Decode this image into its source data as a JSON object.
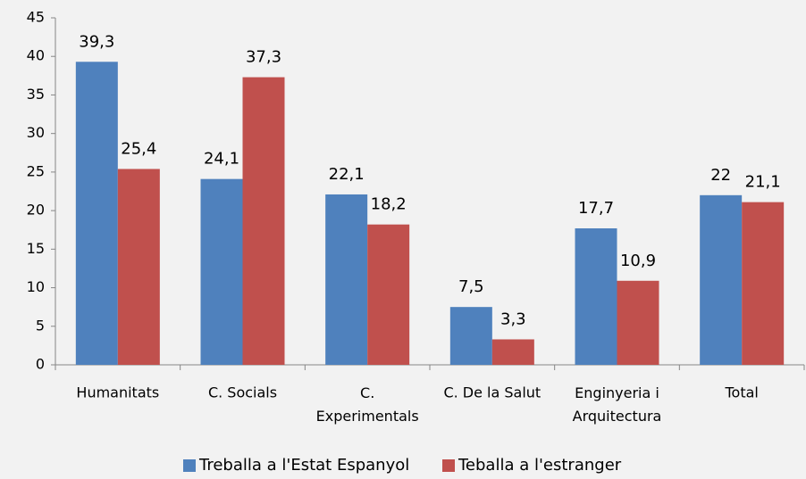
{
  "chart_data": {
    "type": "bar",
    "categories": [
      "Humanitats",
      "C. Socials",
      "C.\nExperimentals",
      "C. De la Salut",
      "Enginyeria i\nArquitectura",
      "Total"
    ],
    "series": [
      {
        "name": "Treballa a l'Estat Espanyol",
        "color": "#4f81bd",
        "values": [
          39.3,
          24.1,
          22.1,
          7.5,
          17.7,
          22
        ],
        "value_labels": [
          "39,3",
          "24,1",
          "22,1",
          "7,5",
          "17,7",
          "22"
        ]
      },
      {
        "name": "Teballa a l'estranger",
        "color": "#c0504d",
        "values": [
          25.4,
          37.3,
          18.2,
          3.3,
          10.9,
          21.1
        ],
        "value_labels": [
          "25,4",
          "37,3",
          "18,2",
          "3,3",
          "10,9",
          "21,1"
        ]
      }
    ],
    "ylim": [
      0,
      45
    ],
    "yticks": [
      0,
      5,
      10,
      15,
      20,
      25,
      30,
      35,
      40,
      45
    ],
    "grid": false,
    "legend": "bottom"
  }
}
